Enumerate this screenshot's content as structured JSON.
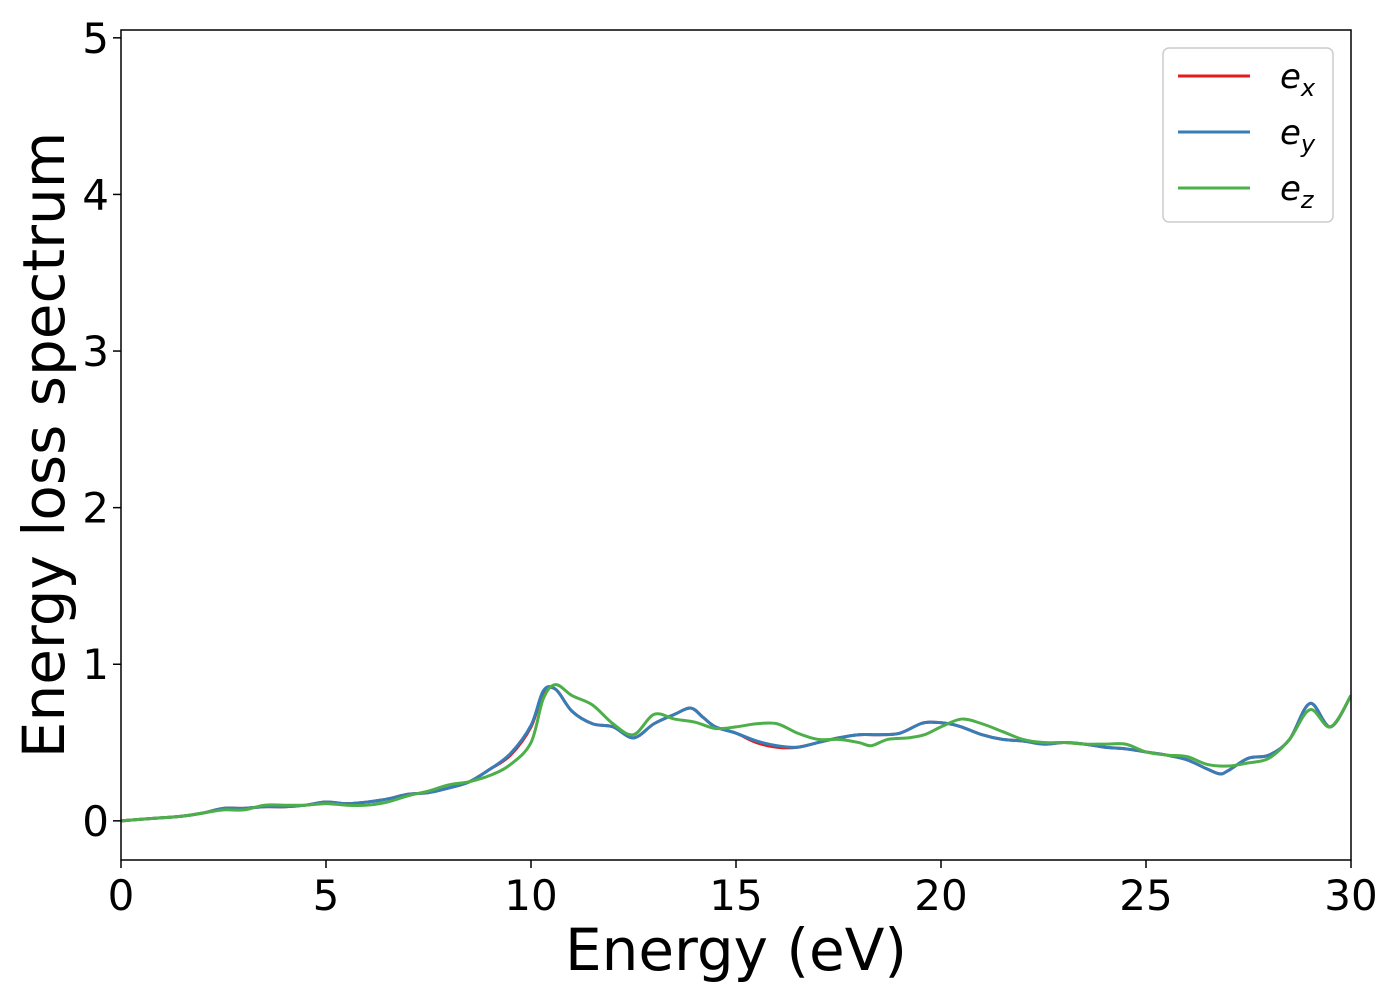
{
  "chart_data": {
    "type": "line",
    "title": "",
    "xlabel": "Energy (eV)",
    "ylabel": "Energy loss spectrum",
    "xlim": [
      0,
      30
    ],
    "ylim": [
      -0.25,
      5.05
    ],
    "xticks": [
      0,
      5,
      10,
      15,
      20,
      25,
      30
    ],
    "yticks": [
      0,
      1,
      2,
      3,
      4,
      5
    ],
    "xtick_labels": [
      "0",
      "5",
      "10",
      "15",
      "20",
      "25",
      "30"
    ],
    "ytick_labels": [
      "0",
      "1",
      "2",
      "3",
      "4",
      "5"
    ],
    "grid": false,
    "legend_position": "top-right",
    "series": [
      {
        "name": "e_x",
        "legend_base": "e",
        "legend_sub": "x",
        "color": "#e41a1c",
        "x": [
          0,
          1,
          1.5,
          2,
          2.5,
          3,
          3.5,
          4,
          4.5,
          5,
          5.5,
          6,
          6.5,
          7,
          7.5,
          8,
          8.5,
          9,
          9.5,
          10,
          10.3,
          10.6,
          11,
          11.5,
          12,
          12.5,
          13,
          13.5,
          13.9,
          14.2,
          14.5,
          15,
          15.5,
          16,
          16.5,
          17,
          17.5,
          18,
          18.5,
          19,
          19.5,
          19.8,
          20.2,
          20.5,
          21,
          21.5,
          22,
          22.5,
          23,
          23.5,
          24,
          24.5,
          25,
          25.5,
          26,
          26.5,
          26.8,
          27,
          27.5,
          28,
          28.5,
          29,
          29.5,
          30
        ],
        "y": [
          0,
          0.02,
          0.03,
          0.05,
          0.08,
          0.08,
          0.09,
          0.09,
          0.1,
          0.12,
          0.11,
          0.12,
          0.14,
          0.17,
          0.18,
          0.21,
          0.25,
          0.33,
          0.42,
          0.6,
          0.82,
          0.84,
          0.7,
          0.62,
          0.6,
          0.53,
          0.62,
          0.68,
          0.72,
          0.66,
          0.6,
          0.56,
          0.5,
          0.47,
          0.47,
          0.5,
          0.53,
          0.55,
          0.55,
          0.56,
          0.62,
          0.63,
          0.62,
          0.6,
          0.55,
          0.52,
          0.51,
          0.49,
          0.5,
          0.49,
          0.47,
          0.46,
          0.44,
          0.42,
          0.39,
          0.33,
          0.3,
          0.32,
          0.4,
          0.42,
          0.52,
          0.75,
          0.6,
          0.8
        ]
      },
      {
        "name": "e_y",
        "legend_base": "e",
        "legend_sub": "y",
        "color": "#377eb8",
        "x": [
          0,
          1,
          1.5,
          2,
          2.5,
          3,
          3.5,
          4,
          4.5,
          5,
          5.5,
          6,
          6.5,
          7,
          7.5,
          8,
          8.5,
          9,
          9.5,
          10,
          10.3,
          10.6,
          11,
          11.5,
          12,
          12.5,
          13,
          13.5,
          13.9,
          14.2,
          14.5,
          15,
          15.5,
          16,
          16.5,
          17,
          17.5,
          18,
          18.5,
          19,
          19.5,
          19.8,
          20.2,
          20.5,
          21,
          21.5,
          22,
          22.5,
          23,
          23.5,
          24,
          24.5,
          25,
          25.5,
          26,
          26.5,
          26.8,
          27,
          27.5,
          28,
          28.5,
          29,
          29.5,
          30
        ],
        "y": [
          0,
          0.02,
          0.03,
          0.05,
          0.08,
          0.08,
          0.09,
          0.09,
          0.1,
          0.12,
          0.11,
          0.12,
          0.14,
          0.17,
          0.18,
          0.21,
          0.25,
          0.33,
          0.43,
          0.61,
          0.83,
          0.84,
          0.7,
          0.62,
          0.6,
          0.53,
          0.62,
          0.68,
          0.72,
          0.66,
          0.6,
          0.56,
          0.51,
          0.48,
          0.47,
          0.5,
          0.53,
          0.55,
          0.55,
          0.56,
          0.62,
          0.63,
          0.62,
          0.6,
          0.55,
          0.52,
          0.51,
          0.49,
          0.5,
          0.49,
          0.47,
          0.46,
          0.44,
          0.42,
          0.39,
          0.33,
          0.3,
          0.32,
          0.4,
          0.42,
          0.52,
          0.75,
          0.6,
          0.8
        ]
      },
      {
        "name": "e_z",
        "legend_base": "e",
        "legend_sub": "z",
        "color": "#4daf4a",
        "x": [
          0,
          1,
          1.5,
          2,
          2.5,
          3,
          3.5,
          4,
          4.5,
          5,
          5.5,
          6,
          6.5,
          7,
          7.5,
          8,
          8.5,
          9,
          9.5,
          10,
          10.3,
          10.6,
          11,
          11.5,
          12,
          12.5,
          13,
          13.5,
          14,
          14.5,
          15,
          15.5,
          16,
          16.5,
          17,
          17.5,
          18,
          18.3,
          18.7,
          19.2,
          19.6,
          20,
          20.5,
          21,
          21.5,
          22,
          22.5,
          23,
          23.5,
          24,
          24.5,
          25,
          25.5,
          26,
          26.5,
          27,
          27.5,
          28,
          28.5,
          29,
          29.5,
          30
        ],
        "y": [
          0,
          0.02,
          0.03,
          0.05,
          0.07,
          0.07,
          0.1,
          0.1,
          0.1,
          0.11,
          0.1,
          0.1,
          0.12,
          0.16,
          0.19,
          0.23,
          0.25,
          0.29,
          0.36,
          0.5,
          0.78,
          0.87,
          0.8,
          0.74,
          0.62,
          0.55,
          0.68,
          0.65,
          0.63,
          0.59,
          0.6,
          0.62,
          0.62,
          0.56,
          0.52,
          0.52,
          0.5,
          0.48,
          0.52,
          0.53,
          0.55,
          0.6,
          0.65,
          0.62,
          0.57,
          0.52,
          0.5,
          0.5,
          0.49,
          0.49,
          0.49,
          0.44,
          0.42,
          0.41,
          0.36,
          0.35,
          0.37,
          0.4,
          0.52,
          0.71,
          0.6,
          0.8
        ]
      }
    ]
  }
}
